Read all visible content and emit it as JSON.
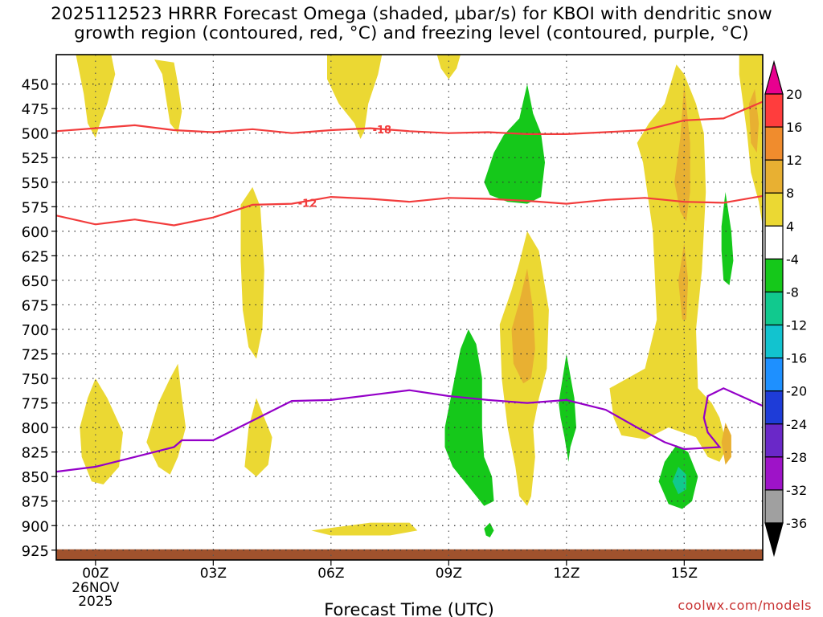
{
  "chart_data": {
    "type": "heatmap",
    "title_line1": "2025112523 HRRR Forecast Omega (shaded, μbar/s) for KBOI with dendritic snow",
    "title_line2": "growth region (contoured, red, °C) and freezing level (contoured, purple, °C)",
    "xlabel": "Forecast Time (UTC)",
    "ylabel": "",
    "x_ticks": [
      {
        "hour": 0,
        "label": "00Z"
      },
      {
        "hour": 3,
        "label": "03Z"
      },
      {
        "hour": 6,
        "label": "06Z"
      },
      {
        "hour": 9,
        "label": "09Z"
      },
      {
        "hour": 12,
        "label": "12Z"
      },
      {
        "hour": 15,
        "label": "15Z"
      }
    ],
    "date_label_line1": "26NOV",
    "date_label_line2": "2025",
    "xlim": [
      -1,
      17
    ],
    "y_ticks": [
      450,
      475,
      500,
      525,
      550,
      575,
      600,
      625,
      650,
      675,
      700,
      725,
      750,
      775,
      800,
      825,
      850,
      875,
      900,
      925
    ],
    "ylim_hpa": [
      420,
      935
    ],
    "ground_level_hpa": 925,
    "colorbar": {
      "labels": [
        "20",
        "16",
        "12",
        "8",
        "4",
        "-4",
        "-8",
        "-12",
        "-16",
        "-20",
        "-24",
        "-28",
        "-32",
        "-36"
      ],
      "colors": [
        "#e8008f",
        "#ff3d3d",
        "#f08c2d",
        "#e8b032",
        "#ebd833",
        "#ffffff",
        "#15c81a",
        "#11c98e",
        "#12c3cf",
        "#1e90ff",
        "#1e3cd8",
        "#6a28c8",
        "#9e13c8",
        "#a0a0a0",
        "#000000"
      ]
    },
    "contours": [
      {
        "name": "dgz_minus18",
        "label": "-18",
        "color": "#f23c3c",
        "points": [
          [
            -1,
            498
          ],
          [
            0,
            495
          ],
          [
            1,
            492
          ],
          [
            2,
            497
          ],
          [
            3,
            499
          ],
          [
            4,
            496
          ],
          [
            5,
            500
          ],
          [
            6,
            497
          ],
          [
            7,
            495
          ],
          [
            8,
            498
          ],
          [
            9,
            500
          ],
          [
            10,
            499
          ],
          [
            11,
            501
          ],
          [
            12,
            501
          ],
          [
            13,
            499
          ],
          [
            14,
            497
          ],
          [
            15,
            487
          ],
          [
            16,
            485
          ],
          [
            17,
            468
          ]
        ]
      },
      {
        "name": "dgz_minus12",
        "label": "-12",
        "color": "#f23c3c",
        "points": [
          [
            -1,
            584
          ],
          [
            0,
            593
          ],
          [
            1,
            588
          ],
          [
            2,
            594
          ],
          [
            3,
            586
          ],
          [
            4,
            573
          ],
          [
            5,
            572
          ],
          [
            6,
            565
          ],
          [
            7,
            567
          ],
          [
            8,
            570
          ],
          [
            9,
            566
          ],
          [
            10,
            567
          ],
          [
            11,
            569
          ],
          [
            12,
            572
          ],
          [
            13,
            568
          ],
          [
            14,
            566
          ],
          [
            15,
            570
          ],
          [
            16,
            571
          ],
          [
            17,
            564
          ]
        ]
      },
      {
        "name": "freezing_level",
        "label": "",
        "color": "#9400c8",
        "points": [
          [
            -1,
            845
          ],
          [
            0,
            840
          ],
          [
            1,
            830
          ],
          [
            2,
            820
          ],
          [
            2.2,
            813
          ],
          [
            3,
            813
          ],
          [
            4,
            793
          ],
          [
            5,
            773
          ],
          [
            6,
            772
          ],
          [
            7,
            767
          ],
          [
            8,
            762
          ],
          [
            9,
            768
          ],
          [
            10,
            772
          ],
          [
            11,
            775
          ],
          [
            12,
            772
          ],
          [
            13,
            782
          ],
          [
            13.8,
            800
          ],
          [
            14.5,
            815
          ],
          [
            15,
            822
          ],
          [
            15.9,
            820
          ],
          [
            15.6,
            805
          ],
          [
            15.5,
            790
          ],
          [
            15.6,
            768
          ],
          [
            16.0,
            760
          ],
          [
            17,
            778
          ]
        ]
      }
    ],
    "shaded_regions": [
      {
        "level": 4,
        "points": [
          [
            -0.5,
            420
          ],
          [
            0.4,
            420
          ],
          [
            0.5,
            440
          ],
          [
            0.3,
            470
          ],
          [
            0.1,
            492
          ],
          [
            0,
            505
          ],
          [
            -0.2,
            490
          ],
          [
            -0.3,
            460
          ]
        ]
      },
      {
        "level": 4,
        "points": [
          [
            1.5,
            425
          ],
          [
            2.0,
            428
          ],
          [
            2.1,
            450
          ],
          [
            2.2,
            478
          ],
          [
            2.1,
            500
          ],
          [
            1.9,
            490
          ],
          [
            1.8,
            465
          ],
          [
            1.7,
            440
          ]
        ]
      },
      {
        "level": 4,
        "points": [
          [
            5.9,
            420
          ],
          [
            7.3,
            420
          ],
          [
            7.2,
            440
          ],
          [
            6.95,
            470
          ],
          [
            6.85,
            498
          ],
          [
            6.75,
            506
          ],
          [
            6.6,
            490
          ],
          [
            6.2,
            470
          ],
          [
            5.9,
            445
          ]
        ]
      },
      {
        "level": 4,
        "points": [
          [
            8.7,
            420
          ],
          [
            9.3,
            420
          ],
          [
            9.2,
            434
          ],
          [
            9.0,
            445
          ],
          [
            8.8,
            434
          ]
        ]
      },
      {
        "level": 4,
        "points": [
          [
            3.7,
            573
          ],
          [
            4.0,
            555
          ],
          [
            4.2,
            575
          ],
          [
            4.3,
            640
          ],
          [
            4.25,
            700
          ],
          [
            4.1,
            730
          ],
          [
            3.9,
            718
          ],
          [
            3.75,
            680
          ],
          [
            3.7,
            630
          ]
        ]
      },
      {
        "level": 4,
        "points": [
          [
            -0.4,
            800
          ],
          [
            -0.2,
            770
          ],
          [
            0,
            750
          ],
          [
            0.3,
            770
          ],
          [
            0.7,
            805
          ],
          [
            0.6,
            840
          ],
          [
            0.2,
            858
          ],
          [
            -0.1,
            855
          ],
          [
            -0.35,
            830
          ]
        ]
      },
      {
        "level": 4,
        "points": [
          [
            1.3,
            815
          ],
          [
            1.6,
            775
          ],
          [
            1.9,
            750
          ],
          [
            2.1,
            735
          ],
          [
            2.2,
            770
          ],
          [
            2.3,
            800
          ],
          [
            2.1,
            830
          ],
          [
            1.9,
            848
          ],
          [
            1.6,
            840
          ]
        ]
      },
      {
        "level": 4,
        "points": [
          [
            3.8,
            840
          ],
          [
            3.9,
            800
          ],
          [
            4.1,
            770
          ],
          [
            4.3,
            790
          ],
          [
            4.5,
            810
          ],
          [
            4.4,
            838
          ],
          [
            4.1,
            850
          ]
        ]
      },
      {
        "level": 4,
        "points": [
          [
            5.5,
            905
          ],
          [
            7.0,
            897
          ],
          [
            8.0,
            897
          ],
          [
            8.2,
            905
          ],
          [
            7.5,
            910
          ],
          [
            6.0,
            910
          ]
        ]
      },
      {
        "level": 4,
        "points": [
          [
            10.3,
            695
          ],
          [
            10.6,
            660
          ],
          [
            10.8,
            632
          ],
          [
            11.0,
            600
          ],
          [
            11.3,
            620
          ],
          [
            11.55,
            680
          ],
          [
            11.5,
            740
          ],
          [
            11.3,
            770
          ],
          [
            11.15,
            800
          ],
          [
            11.2,
            830
          ],
          [
            11.1,
            870
          ],
          [
            11.0,
            880
          ],
          [
            10.8,
            870
          ],
          [
            10.7,
            840
          ],
          [
            10.5,
            800
          ],
          [
            10.35,
            750
          ]
        ]
      },
      {
        "level": 4,
        "points": [
          [
            13.8,
            510
          ],
          [
            14.1,
            490
          ],
          [
            14.5,
            470
          ],
          [
            14.8,
            430
          ],
          [
            15.0,
            440
          ],
          [
            15.3,
            470
          ],
          [
            15.5,
            500
          ],
          [
            15.55,
            560
          ],
          [
            15.45,
            640
          ],
          [
            15.3,
            700
          ],
          [
            15.35,
            760
          ],
          [
            15.7,
            775
          ],
          [
            15.9,
            790
          ],
          [
            16.0,
            805
          ],
          [
            16.1,
            820
          ],
          [
            15.9,
            835
          ],
          [
            15.6,
            830
          ],
          [
            15.3,
            810
          ],
          [
            14.6,
            800
          ],
          [
            14.0,
            812
          ],
          [
            13.4,
            808
          ],
          [
            13.2,
            790
          ],
          [
            13.1,
            760
          ],
          [
            14.0,
            740
          ],
          [
            14.3,
            690
          ],
          [
            14.2,
            600
          ],
          [
            13.95,
            530
          ]
        ]
      },
      {
        "level": 4,
        "points": [
          [
            16.4,
            420
          ],
          [
            17,
            420
          ],
          [
            17,
            595
          ],
          [
            16.9,
            570
          ],
          [
            16.7,
            540
          ],
          [
            16.6,
            500
          ],
          [
            16.5,
            470
          ],
          [
            16.4,
            440
          ]
        ]
      },
      {
        "level": 8,
        "points": [
          [
            10.6,
            700
          ],
          [
            10.8,
            672
          ],
          [
            11.0,
            638
          ],
          [
            11.15,
            680
          ],
          [
            11.2,
            720
          ],
          [
            11.1,
            750
          ],
          [
            10.9,
            755
          ],
          [
            10.65,
            735
          ]
        ]
      },
      {
        "level": 8,
        "points": [
          [
            14.75,
            550
          ],
          [
            14.9,
            505
          ],
          [
            15.0,
            450
          ],
          [
            15.15,
            510
          ],
          [
            15.15,
            560
          ],
          [
            15.05,
            590
          ],
          [
            14.9,
            580
          ]
        ]
      },
      {
        "level": 8,
        "points": [
          [
            14.85,
            650
          ],
          [
            15.0,
            612
          ],
          [
            15.1,
            650
          ],
          [
            15.05,
            690
          ],
          [
            14.95,
            690
          ]
        ]
      },
      {
        "level": 8,
        "points": [
          [
            15.95,
            815
          ],
          [
            16.05,
            795
          ],
          [
            16.2,
            808
          ],
          [
            16.2,
            830
          ],
          [
            16.05,
            838
          ]
        ]
      },
      {
        "level": 8,
        "points": [
          [
            16.65,
            470
          ],
          [
            16.8,
            455
          ],
          [
            16.9,
            490
          ],
          [
            16.85,
            520
          ],
          [
            16.7,
            510
          ]
        ]
      },
      {
        "level": -4,
        "points": [
          [
            9.9,
            550
          ],
          [
            10.15,
            520
          ],
          [
            10.4,
            502
          ],
          [
            10.8,
            485
          ],
          [
            11.0,
            450
          ],
          [
            11.15,
            480
          ],
          [
            11.35,
            500
          ],
          [
            11.45,
            530
          ],
          [
            11.35,
            565
          ],
          [
            11.0,
            572
          ],
          [
            10.5,
            570
          ],
          [
            10.05,
            563
          ]
        ]
      },
      {
        "level": -4,
        "points": [
          [
            8.9,
            800
          ],
          [
            9.1,
            760
          ],
          [
            9.3,
            720
          ],
          [
            9.5,
            700
          ],
          [
            9.7,
            715
          ],
          [
            9.85,
            750
          ],
          [
            9.85,
            800
          ],
          [
            9.9,
            830
          ],
          [
            10.1,
            850
          ],
          [
            10.15,
            875
          ],
          [
            9.9,
            880
          ],
          [
            9.5,
            860
          ],
          [
            9.1,
            840
          ],
          [
            8.9,
            820
          ]
        ]
      },
      {
        "level": -4,
        "points": [
          [
            11.8,
            775
          ],
          [
            11.9,
            750
          ],
          [
            12.0,
            725
          ],
          [
            12.2,
            770
          ],
          [
            12.25,
            800
          ],
          [
            12.1,
            820
          ],
          [
            12.05,
            835
          ],
          [
            11.95,
            810
          ],
          [
            11.85,
            790
          ]
        ]
      },
      {
        "level": -4,
        "points": [
          [
            15.95,
            595
          ],
          [
            16.05,
            560
          ],
          [
            16.2,
            600
          ],
          [
            16.25,
            630
          ],
          [
            16.15,
            655
          ],
          [
            16.0,
            650
          ],
          [
            15.95,
            620
          ]
        ]
      },
      {
        "level": -4,
        "points": [
          [
            14.35,
            855
          ],
          [
            14.5,
            835
          ],
          [
            14.8,
            818
          ],
          [
            15.1,
            825
          ],
          [
            15.35,
            850
          ],
          [
            15.2,
            875
          ],
          [
            14.95,
            883
          ],
          [
            14.6,
            878
          ]
        ]
      },
      {
        "level": -4,
        "points": [
          [
            9.9,
            903
          ],
          [
            10.05,
            897
          ],
          [
            10.15,
            905
          ],
          [
            10.05,
            912
          ],
          [
            9.95,
            910
          ]
        ]
      },
      {
        "level": -8,
        "points": [
          [
            14.7,
            855
          ],
          [
            14.85,
            840
          ],
          [
            15.05,
            848
          ],
          [
            15.05,
            863
          ],
          [
            14.85,
            868
          ]
        ]
      }
    ]
  },
  "credit": "coolwx.com/models"
}
